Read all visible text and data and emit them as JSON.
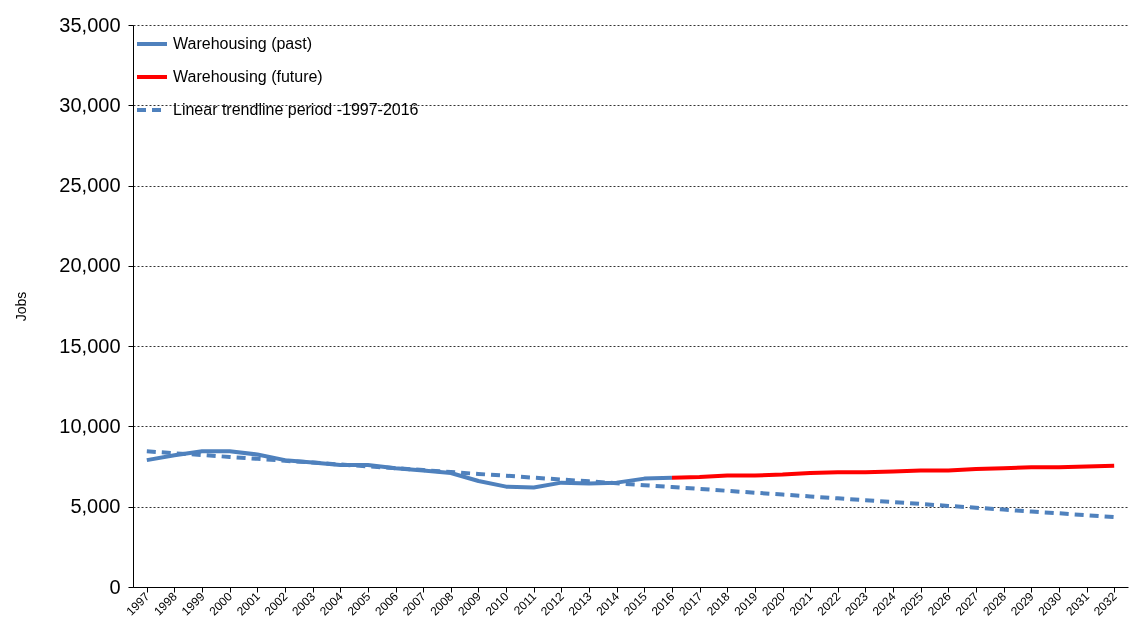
{
  "chart_data": {
    "type": "line",
    "ylabel": "Jobs",
    "categories": [
      "1997",
      "1998",
      "1999",
      "2000",
      "2001",
      "2002",
      "2003",
      "2004",
      "2005",
      "2006",
      "2007",
      "2008",
      "2009",
      "2010",
      "2011",
      "2012",
      "2013",
      "2014",
      "2015",
      "2016",
      "2017",
      "2018",
      "2019",
      "2020",
      "2021",
      "2022",
      "2023",
      "2024",
      "2025",
      "2026",
      "2027",
      "2028",
      "2029",
      "2030",
      "2031",
      "2032"
    ],
    "series": [
      {
        "name": "Warehousing (past)",
        "color": "#4f81bd",
        "line_style": "solid",
        "values": [
          7900,
          8200,
          8450,
          8450,
          8250,
          7900,
          7750,
          7600,
          7600,
          7400,
          7250,
          7100,
          6600,
          6250,
          6200,
          6500,
          6450,
          6500,
          6750,
          6800,
          null,
          null,
          null,
          null,
          null,
          null,
          null,
          null,
          null,
          null,
          null,
          null,
          null,
          null,
          null,
          null
        ]
      },
      {
        "name": "Warehousing (future)",
        "color": "#ff0000",
        "line_style": "solid",
        "values": [
          null,
          null,
          null,
          null,
          null,
          null,
          null,
          null,
          null,
          null,
          null,
          null,
          null,
          null,
          null,
          null,
          null,
          null,
          null,
          6800,
          6850,
          6950,
          6950,
          7000,
          7100,
          7150,
          7150,
          7200,
          7250,
          7250,
          7350,
          7400,
          7450,
          7450,
          7500,
          7550
        ]
      },
      {
        "name": "Linear trendline period -1997-2016",
        "color": "#4f81bd",
        "line_style": "dashed",
        "type": "line",
        "values": [
          8450,
          8330,
          8220,
          8100,
          7980,
          7860,
          7750,
          7630,
          7510,
          7400,
          7280,
          7160,
          7040,
          6930,
          6810,
          6690,
          6580,
          6460,
          6340,
          6230,
          6110,
          5990,
          5870,
          5760,
          5640,
          5520,
          5410,
          5290,
          5170,
          5050,
          4940,
          4820,
          4700,
          4590,
          4470,
          4350
        ]
      }
    ],
    "ylim": [
      0,
      35000
    ],
    "yticks": [
      0,
      {
        "value": 5000,
        "label": "5,000"
      },
      {
        "value": 10000,
        "label": "10,000"
      },
      {
        "value": 15000,
        "label": "15,000"
      },
      {
        "value": 20000,
        "label": "20,000"
      },
      {
        "value": 25000,
        "label": "25,000"
      },
      {
        "value": 30000,
        "label": "30,000"
      },
      {
        "value": 35000,
        "label": "35,000"
      }
    ],
    "grid": "y",
    "legend": "top left"
  }
}
